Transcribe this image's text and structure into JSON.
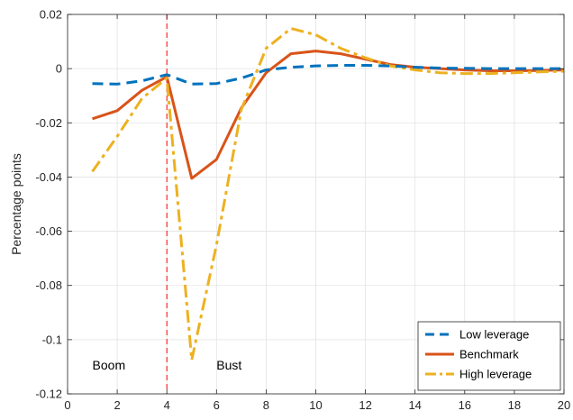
{
  "chart_data": {
    "type": "line",
    "title": "",
    "xlabel": "",
    "ylabel": "Percentage points",
    "xlim": [
      0,
      20
    ],
    "ylim": [
      -0.12,
      0.02
    ],
    "xticks": [
      0,
      2,
      4,
      6,
      8,
      10,
      12,
      14,
      16,
      18,
      20
    ],
    "xtick_labels": [
      "0",
      "2",
      "4",
      "6",
      "8",
      "10",
      "12",
      "14",
      "16",
      "18",
      "20"
    ],
    "yticks": [
      -0.12,
      -0.1,
      -0.08,
      -0.06,
      -0.04,
      -0.02,
      0,
      0.02
    ],
    "ytick_labels": [
      "-0.12",
      "-0.1",
      "-0.08",
      "-0.06",
      "-0.04",
      "-0.02",
      "0",
      "0.02"
    ],
    "grid": true,
    "legend_position": "bottom-right",
    "vline": {
      "x": 4,
      "color": "#ff0000"
    },
    "annotations": [
      {
        "text": "Boom",
        "x": 1,
        "y": -0.111
      },
      {
        "text": "Bust",
        "x": 6,
        "y": -0.111
      }
    ],
    "series": [
      {
        "name": "Low leverage",
        "color": "#0072bd",
        "style": "dashed",
        "x": [
          1,
          2,
          3,
          4,
          5,
          6,
          7,
          8,
          9,
          10,
          11,
          12,
          13,
          14,
          15,
          16,
          17,
          18,
          19,
          20
        ],
        "y": [
          -0.0055,
          -0.0057,
          -0.0045,
          -0.0022,
          -0.0057,
          -0.0055,
          -0.0035,
          -0.0005,
          0.0005,
          0.001,
          0.0012,
          0.0012,
          0.001,
          0.0005,
          0.0002,
          0.0001,
          0,
          0,
          0,
          0
        ]
      },
      {
        "name": "Benchmark",
        "color": "#d95319",
        "style": "solid",
        "x": [
          1,
          2,
          3,
          4,
          5,
          6,
          7,
          8,
          9,
          10,
          11,
          12,
          13,
          14,
          15,
          16,
          17,
          18,
          19,
          20
        ],
        "y": [
          -0.0185,
          -0.0155,
          -0.008,
          -0.003,
          -0.0405,
          -0.0335,
          -0.0145,
          -0.0015,
          0.0055,
          0.0065,
          0.0055,
          0.0035,
          0.0015,
          0.0005,
          0.0,
          -0.0005,
          -0.0008,
          -0.0008,
          -0.0007,
          -0.0005
        ]
      },
      {
        "name": "High leverage",
        "color": "#edb120",
        "style": "dashdot",
        "x": [
          1,
          2,
          3,
          4,
          5,
          6,
          7,
          8,
          9,
          10,
          11,
          12,
          13,
          14,
          15,
          16,
          17,
          18,
          19,
          20
        ],
        "y": [
          -0.038,
          -0.025,
          -0.011,
          -0.0035,
          -0.1075,
          -0.065,
          -0.015,
          0.0075,
          0.0148,
          0.0125,
          0.0075,
          0.004,
          0.001,
          -0.0005,
          -0.0015,
          -0.0018,
          -0.0018,
          -0.0015,
          -0.0012,
          -0.001
        ]
      }
    ]
  }
}
